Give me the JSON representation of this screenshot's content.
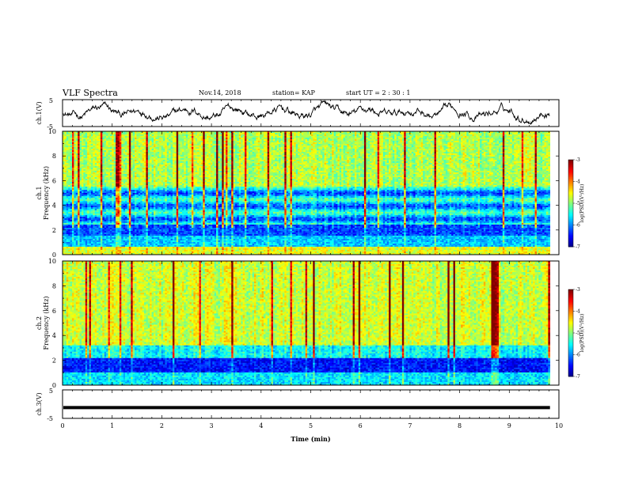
{
  "header": {
    "title": "VLF Spectra",
    "date": "Nov.14, 2018",
    "station": "station= KAP",
    "start": "start  UT =   2 : 30 : 1"
  },
  "chart_data": [
    {
      "type": "line",
      "ylabel": "ch.1(V)",
      "ylim": [
        -5,
        5
      ],
      "yticks": [
        "5",
        "-5"
      ],
      "xlim": [
        0,
        10
      ],
      "x_end": 9.82,
      "description_color": "#000000",
      "series": [
        {
          "values_summary": "noisy waveform between about -3 and 3 V"
        }
      ]
    },
    {
      "type": "heatmap",
      "ylabel": "ch.1\nFrequency (kHz)",
      "ylabel_lines": [
        "ch.1",
        "Frequency (kHz)"
      ],
      "ylim": [
        0,
        10
      ],
      "yticks": [
        "0",
        "2",
        "4",
        "6",
        "8",
        "10"
      ],
      "xlim": [
        0,
        10
      ],
      "x_end": 9.82,
      "colorbar": {
        "label": "log(PSD)(V²/Hz)",
        "range": [
          -7,
          -3
        ],
        "ticks": [
          "-3",
          "-4",
          "-5",
          "-6",
          "-7"
        ]
      }
    },
    {
      "type": "heatmap",
      "ylabel_lines": [
        "ch.2",
        "Frequency (kHz)"
      ],
      "ylim": [
        0,
        10
      ],
      "yticks": [
        "0",
        "2",
        "4",
        "6",
        "8",
        "10"
      ],
      "xlim": [
        0,
        10
      ],
      "x_end": 9.82,
      "colorbar": {
        "label": "log(PSD)(V²/Hz)",
        "range": [
          -7,
          -3
        ],
        "ticks": [
          "-3",
          "-4",
          "-5",
          "-6",
          "-7"
        ]
      }
    },
    {
      "type": "line",
      "ylabel": "ch.3(V)",
      "ylim": [
        -5,
        5
      ],
      "yticks": [
        "5",
        "-5"
      ],
      "xlim": [
        0,
        10
      ],
      "x_end": 9.82,
      "series": [
        {
          "values": [
            -1.2,
            -1.2
          ]
        }
      ]
    }
  ],
  "xaxis": {
    "label": "Time  (min)",
    "ticks": [
      "0",
      "1",
      "2",
      "3",
      "4",
      "5",
      "6",
      "7",
      "8",
      "9",
      "10"
    ]
  }
}
